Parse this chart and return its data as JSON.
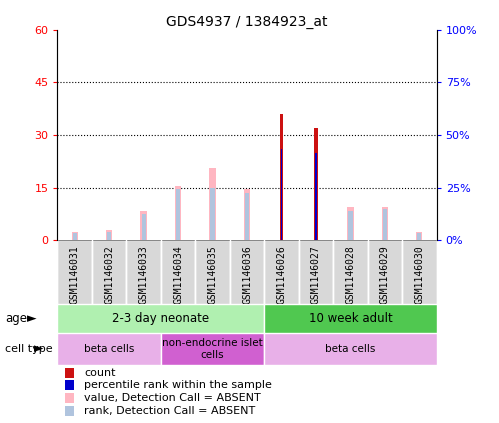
{
  "title": "GDS4937 / 1384923_at",
  "samples": [
    "GSM1146031",
    "GSM1146032",
    "GSM1146033",
    "GSM1146034",
    "GSM1146035",
    "GSM1146036",
    "GSM1146026",
    "GSM1146027",
    "GSM1146028",
    "GSM1146029",
    "GSM1146030"
  ],
  "count": [
    0,
    0,
    0,
    0,
    0,
    0,
    36,
    32,
    0,
    0,
    0
  ],
  "percentile_rank": [
    0,
    0,
    0,
    0,
    0,
    0,
    26,
    25,
    0,
    0,
    0
  ],
  "value_absent": [
    2.5,
    3.0,
    8.5,
    15.5,
    20.5,
    14.5,
    0,
    0,
    9.5,
    9.5,
    2.5
  ],
  "rank_absent": [
    2.0,
    2.5,
    7.5,
    14.5,
    15.0,
    13.5,
    0,
    0,
    8.5,
    9.0,
    2.0
  ],
  "left_ylim": [
    0,
    60
  ],
  "left_yticks": [
    0,
    15,
    30,
    45,
    60
  ],
  "left_yticklabels": [
    "0",
    "15",
    "30",
    "45",
    "60"
  ],
  "right_yticklabels": [
    "0%",
    "25%",
    "50%",
    "75%",
    "100%"
  ],
  "color_count": "#cc1111",
  "color_rank": "#0000cc",
  "color_value_absent": "#ffb6c1",
  "color_rank_absent": "#b0c4de",
  "age_groups": [
    {
      "label": "2-3 day neonate",
      "start": 0,
      "end": 6,
      "color": "#b0f0b0"
    },
    {
      "label": "10 week adult",
      "start": 6,
      "end": 11,
      "color": "#50c850"
    }
  ],
  "cell_type_groups": [
    {
      "label": "beta cells",
      "start": 0,
      "end": 3,
      "color": "#e8b0e8"
    },
    {
      "label": "non-endocrine islet\ncells",
      "start": 3,
      "end": 6,
      "color": "#d060d0"
    },
    {
      "label": "beta cells",
      "start": 6,
      "end": 11,
      "color": "#e8b0e8"
    }
  ],
  "legend_items": [
    {
      "label": "count",
      "color": "#cc1111"
    },
    {
      "label": "percentile rank within the sample",
      "color": "#0000cc"
    },
    {
      "label": "value, Detection Call = ABSENT",
      "color": "#ffb6c1"
    },
    {
      "label": "rank, Detection Call = ABSENT",
      "color": "#b0c4de"
    }
  ]
}
